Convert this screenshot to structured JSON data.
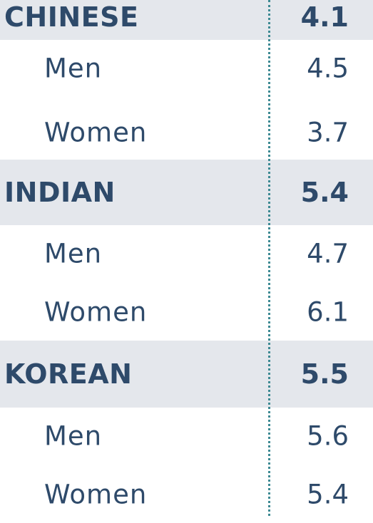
{
  "groups": [
    {
      "label": "CHINESE",
      "value": "4.1",
      "rows": [
        {
          "label": "Men",
          "value": "4.5"
        },
        {
          "label": "Women",
          "value": "3.7"
        }
      ]
    },
    {
      "label": "INDIAN",
      "value": "5.4",
      "rows": [
        {
          "label": "Men",
          "value": "4.7"
        },
        {
          "label": "Women",
          "value": "6.1"
        }
      ]
    },
    {
      "label": "KOREAN",
      "value": "5.5",
      "rows": [
        {
          "label": "Men",
          "value": "5.6"
        },
        {
          "label": "Women",
          "value": "5.4"
        }
      ]
    }
  ]
}
